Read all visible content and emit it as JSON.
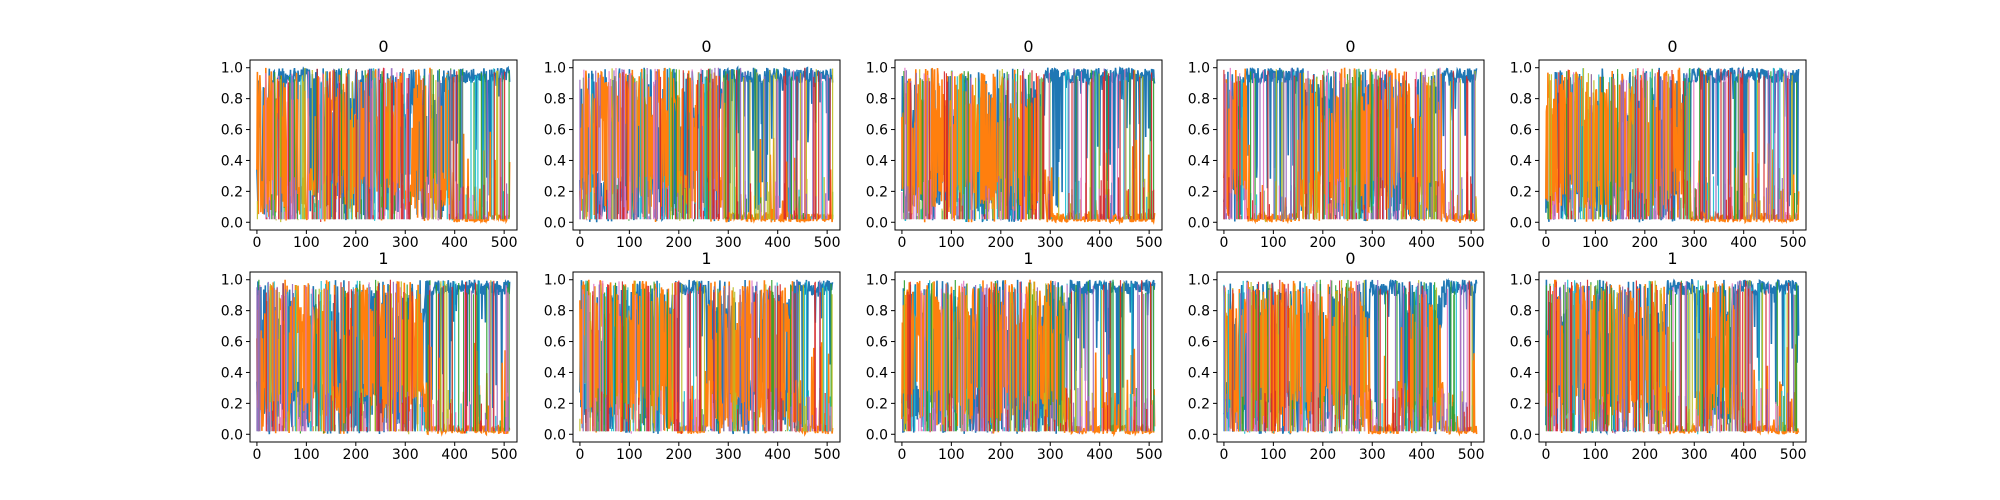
{
  "figure": {
    "layout": {
      "rows": 2,
      "cols": 5
    },
    "colors": {
      "blue": "#1f77b4",
      "orange": "#ff7f0e",
      "cyan": "#17becf",
      "green": "#2ca02c",
      "olive": "#bcbd22",
      "pink": "#e377c2",
      "purple": "#9467bd",
      "red": "#d62728",
      "axis": "#000000"
    }
  },
  "chart_data": [
    {
      "type": "line",
      "title": "0",
      "xlim": [
        -14,
        526
      ],
      "ylim": [
        -0.05,
        1.05
      ],
      "xticks": [
        "0",
        "100",
        "200",
        "300",
        "400",
        "500"
      ],
      "yticks": [
        "0.0",
        "0.2",
        "0.4",
        "0.6",
        "0.8",
        "1.0"
      ],
      "x": [
        0,
        50,
        100,
        150,
        200,
        250,
        300,
        350,
        400,
        450,
        511
      ],
      "series": [
        {
          "color": "#1f77b4",
          "values": [
            0.5,
            0.85,
            0.85,
            0.5,
            0.6,
            0.45,
            0.55,
            0.5,
            0.95,
            0.95,
            0.95
          ]
        },
        {
          "color": "#ff7f0e",
          "values": [
            0.45,
            0.8,
            0.1,
            0.5,
            0.35,
            0.5,
            0.4,
            0.45,
            0.02,
            0.02,
            0.02
          ]
        }
      ]
    },
    {
      "type": "line",
      "title": "0",
      "xlim": [
        -14,
        526
      ],
      "ylim": [
        -0.05,
        1.05
      ],
      "xticks": [
        "0",
        "100",
        "200",
        "300",
        "400",
        "500"
      ],
      "yticks": [
        "0.0",
        "0.2",
        "0.4",
        "0.6",
        "0.8",
        "1.0"
      ],
      "x": [
        0,
        50,
        100,
        150,
        200,
        250,
        300,
        350,
        400,
        450,
        511
      ],
      "series": [
        {
          "color": "#1f77b4",
          "values": [
            0.3,
            0.25,
            0.35,
            0.4,
            0.3,
            0.4,
            0.9,
            0.9,
            0.9,
            0.95,
            0.95
          ]
        },
        {
          "color": "#ff7f0e",
          "values": [
            0.65,
            0.7,
            0.6,
            0.55,
            0.65,
            0.55,
            0.05,
            0.05,
            0.05,
            0.03,
            0.03
          ]
        }
      ]
    },
    {
      "type": "line",
      "title": "0",
      "xlim": [
        -14,
        526
      ],
      "ylim": [
        -0.05,
        1.05
      ],
      "xticks": [
        "0",
        "100",
        "200",
        "300",
        "400",
        "500"
      ],
      "yticks": [
        "0.0",
        "0.2",
        "0.4",
        "0.6",
        "0.8",
        "1.0"
      ],
      "x": [
        0,
        50,
        100,
        150,
        200,
        250,
        300,
        350,
        400,
        450,
        511
      ],
      "series": [
        {
          "color": "#1f77b4",
          "values": [
            0.4,
            0.35,
            0.4,
            0.45,
            0.4,
            0.45,
            0.9,
            0.9,
            0.95,
            0.95,
            0.95
          ]
        },
        {
          "color": "#ff7f0e",
          "values": [
            0.55,
            0.6,
            0.55,
            0.5,
            0.55,
            0.5,
            0.05,
            0.05,
            0.03,
            0.03,
            0.03
          ]
        }
      ]
    },
    {
      "type": "line",
      "title": "0",
      "xlim": [
        -14,
        526
      ],
      "ylim": [
        -0.05,
        1.05
      ],
      "xticks": [
        "0",
        "100",
        "200",
        "300",
        "400",
        "500"
      ],
      "yticks": [
        "0.0",
        "0.2",
        "0.4",
        "0.6",
        "0.8",
        "1.0"
      ],
      "x": [
        0,
        50,
        100,
        150,
        200,
        250,
        300,
        350,
        400,
        450,
        511
      ],
      "series": [
        {
          "color": "#1f77b4",
          "values": [
            0.5,
            0.85,
            0.9,
            0.85,
            0.5,
            0.35,
            0.45,
            0.4,
            0.4,
            0.9,
            0.95
          ]
        },
        {
          "color": "#ff7f0e",
          "values": [
            0.45,
            0.1,
            0.08,
            0.1,
            0.45,
            0.6,
            0.5,
            0.55,
            0.55,
            0.05,
            0.03
          ]
        }
      ]
    },
    {
      "type": "line",
      "title": "0",
      "xlim": [
        -14,
        526
      ],
      "ylim": [
        -0.05,
        1.05
      ],
      "xticks": [
        "0",
        "100",
        "200",
        "300",
        "400",
        "500"
      ],
      "yticks": [
        "0.0",
        "0.2",
        "0.4",
        "0.6",
        "0.8",
        "1.0"
      ],
      "x": [
        0,
        50,
        100,
        150,
        200,
        250,
        300,
        350,
        400,
        450,
        511
      ],
      "series": [
        {
          "color": "#1f77b4",
          "values": [
            0.4,
            0.45,
            0.35,
            0.45,
            0.4,
            0.45,
            0.9,
            0.9,
            0.95,
            0.95,
            0.95
          ]
        },
        {
          "color": "#ff7f0e",
          "values": [
            0.55,
            0.5,
            0.6,
            0.5,
            0.55,
            0.5,
            0.05,
            0.05,
            0.03,
            0.03,
            0.03
          ]
        }
      ]
    },
    {
      "type": "line",
      "title": "1",
      "xlim": [
        -14,
        526
      ],
      "ylim": [
        -0.05,
        1.05
      ],
      "xticks": [
        "0",
        "100",
        "200",
        "300",
        "400",
        "500"
      ],
      "yticks": [
        "0.0",
        "0.2",
        "0.4",
        "0.6",
        "0.8",
        "1.0"
      ],
      "x": [
        0,
        50,
        100,
        150,
        200,
        250,
        300,
        350,
        400,
        450,
        511
      ],
      "series": [
        {
          "color": "#1f77b4",
          "values": [
            0.45,
            0.4,
            0.4,
            0.45,
            0.4,
            0.45,
            0.4,
            0.9,
            0.9,
            0.9,
            0.95
          ]
        },
        {
          "color": "#ff7f0e",
          "values": [
            0.5,
            0.55,
            0.55,
            0.5,
            0.55,
            0.5,
            0.55,
            0.05,
            0.05,
            0.05,
            0.03
          ]
        }
      ]
    },
    {
      "type": "line",
      "title": "1",
      "xlim": [
        -14,
        526
      ],
      "ylim": [
        -0.05,
        1.05
      ],
      "xticks": [
        "0",
        "100",
        "200",
        "300",
        "400",
        "500"
      ],
      "yticks": [
        "0.0",
        "0.2",
        "0.4",
        "0.6",
        "0.8",
        "1.0"
      ],
      "x": [
        0,
        50,
        100,
        150,
        200,
        250,
        300,
        350,
        400,
        450,
        511
      ],
      "series": [
        {
          "color": "#1f77b4",
          "values": [
            0.35,
            0.4,
            0.4,
            0.45,
            0.8,
            0.85,
            0.4,
            0.35,
            0.45,
            0.9,
            0.95
          ]
        },
        {
          "color": "#ff7f0e",
          "values": [
            0.6,
            0.55,
            0.55,
            0.5,
            0.1,
            0.08,
            0.55,
            0.6,
            0.5,
            0.05,
            0.03
          ]
        }
      ]
    },
    {
      "type": "line",
      "title": "1",
      "xlim": [
        -14,
        526
      ],
      "ylim": [
        -0.05,
        1.05
      ],
      "xticks": [
        "0",
        "100",
        "200",
        "300",
        "400",
        "500"
      ],
      "yticks": [
        "0.0",
        "0.2",
        "0.4",
        "0.6",
        "0.8",
        "1.0"
      ],
      "x": [
        0,
        50,
        100,
        150,
        200,
        250,
        300,
        350,
        400,
        450,
        511
      ],
      "series": [
        {
          "color": "#1f77b4",
          "values": [
            0.35,
            0.35,
            0.4,
            0.35,
            0.4,
            0.35,
            0.4,
            0.9,
            0.9,
            0.95,
            0.95
          ]
        },
        {
          "color": "#ff7f0e",
          "values": [
            0.6,
            0.6,
            0.55,
            0.6,
            0.55,
            0.6,
            0.55,
            0.05,
            0.05,
            0.03,
            0.03
          ]
        }
      ]
    },
    {
      "type": "line",
      "title": "0",
      "xlim": [
        -14,
        526
      ],
      "ylim": [
        -0.05,
        1.05
      ],
      "xticks": [
        "0",
        "100",
        "200",
        "300",
        "400",
        "500"
      ],
      "yticks": [
        "0.0",
        "0.2",
        "0.4",
        "0.6",
        "0.8",
        "1.0"
      ],
      "x": [
        0,
        50,
        100,
        150,
        200,
        250,
        300,
        350,
        400,
        450,
        511
      ],
      "series": [
        {
          "color": "#1f77b4",
          "values": [
            0.45,
            0.4,
            0.45,
            0.4,
            0.45,
            0.4,
            0.85,
            0.85,
            0.4,
            0.9,
            0.95
          ]
        },
        {
          "color": "#ff7f0e",
          "values": [
            0.5,
            0.55,
            0.5,
            0.55,
            0.5,
            0.55,
            0.1,
            0.1,
            0.55,
            0.05,
            0.03
          ]
        }
      ]
    },
    {
      "type": "line",
      "title": "1",
      "xlim": [
        -14,
        526
      ],
      "ylim": [
        -0.05,
        1.05
      ],
      "xticks": [
        "0",
        "100",
        "200",
        "300",
        "400",
        "500"
      ],
      "yticks": [
        "0.0",
        "0.2",
        "0.4",
        "0.6",
        "0.8",
        "1.0"
      ],
      "x": [
        0,
        50,
        100,
        150,
        200,
        250,
        300,
        350,
        400,
        450,
        511
      ],
      "series": [
        {
          "color": "#1f77b4",
          "values": [
            0.4,
            0.45,
            0.4,
            0.45,
            0.4,
            0.85,
            0.85,
            0.4,
            0.9,
            0.9,
            0.95
          ]
        },
        {
          "color": "#ff7f0e",
          "values": [
            0.55,
            0.5,
            0.55,
            0.5,
            0.55,
            0.1,
            0.08,
            0.55,
            0.05,
            0.05,
            0.03
          ]
        }
      ]
    }
  ]
}
